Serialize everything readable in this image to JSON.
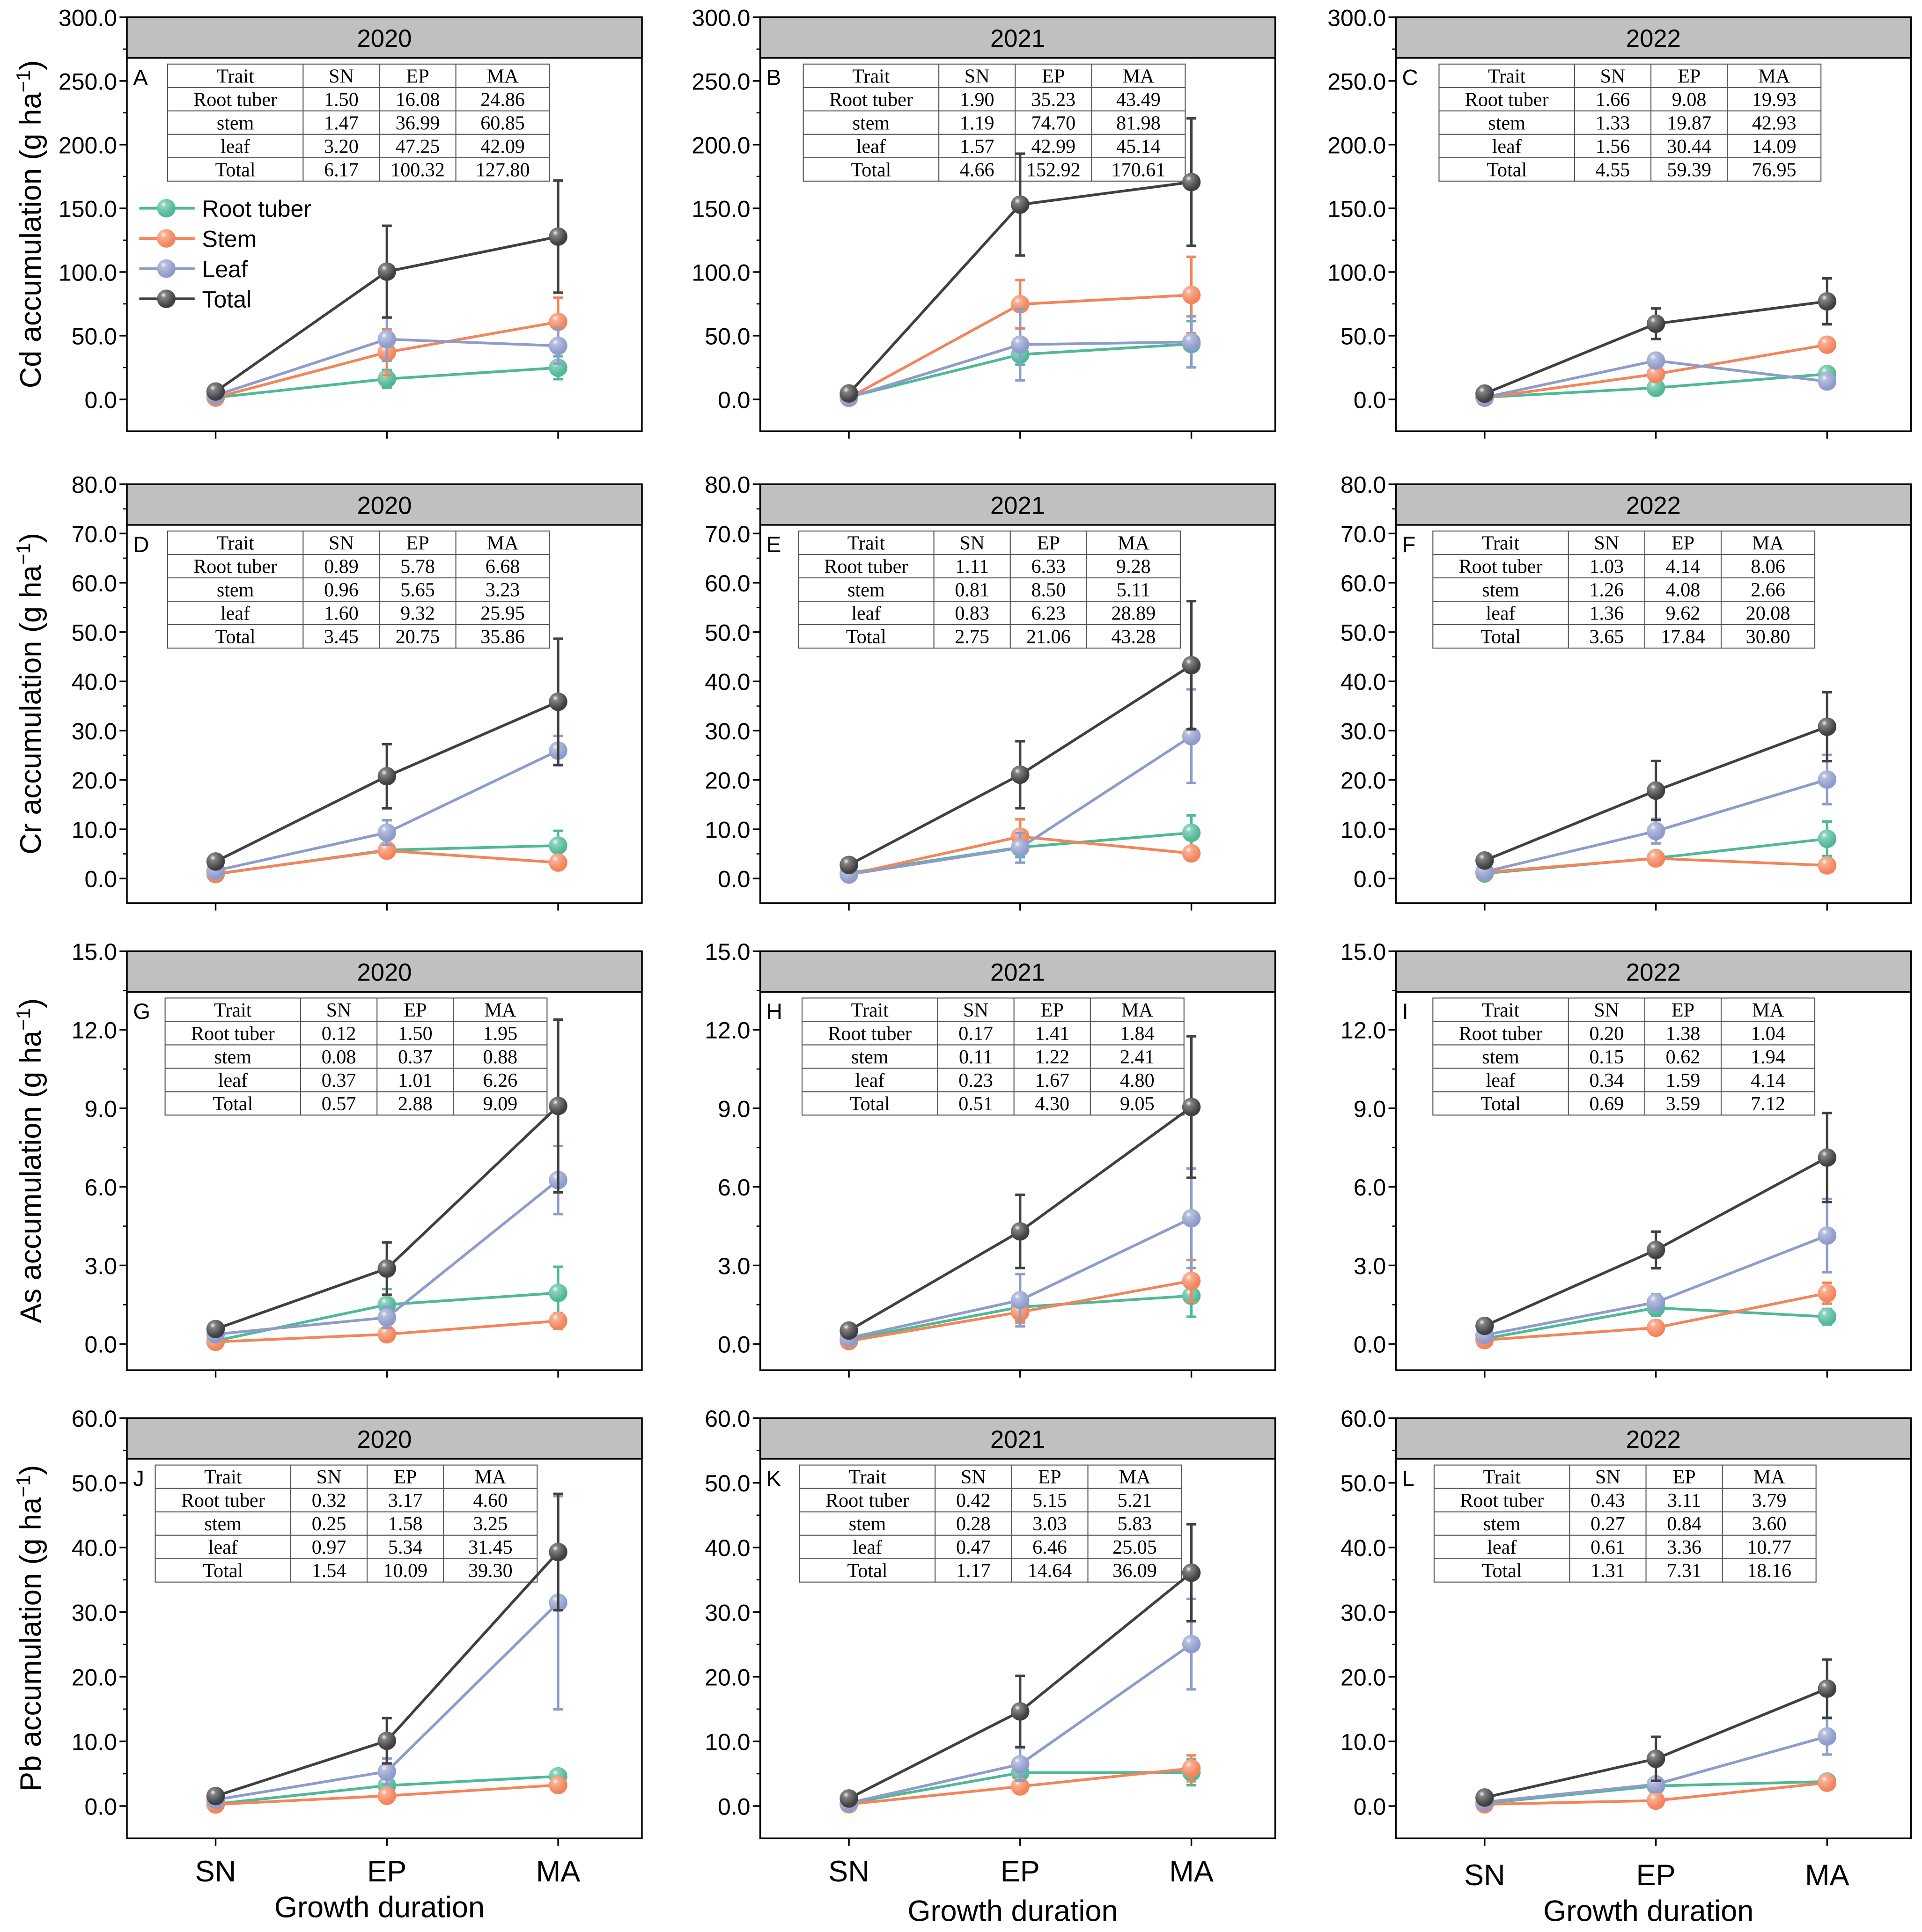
{
  "colors": {
    "root_tuber": "#4fb997",
    "stem": "#f4845a",
    "leaf": "#8e9ccb",
    "total": "#404040",
    "header_bg": "#c0c0c0"
  },
  "x_categories": [
    "SN",
    "EP",
    "MA"
  ],
  "x_axis_title": "Growth duration",
  "legend": [
    "Root tuber",
    "Stem",
    "Leaf",
    "Total"
  ],
  "table_header": [
    "Trait",
    "SN",
    "EP",
    "MA"
  ],
  "table_rows": [
    "Root tuber",
    "stem",
    "leaf",
    "Total"
  ],
  "chart_data": [
    {
      "type": "line",
      "panel": "A",
      "title": "2020",
      "element": "Cd",
      "ylabel": "Cd accumulation (g ha",
      "ylim": [
        -25,
        300
      ],
      "yticks": [
        0,
        50,
        100,
        150,
        200,
        250,
        300
      ],
      "ytick_decimals": 1,
      "series": [
        {
          "name": "Root tuber",
          "values": [
            1.5,
            16.08,
            24.86
          ],
          "errors": [
            1,
            7,
            9
          ]
        },
        {
          "name": "Stem",
          "values": [
            1.47,
            36.99,
            60.85
          ],
          "errors": [
            2,
            18,
            19
          ]
        },
        {
          "name": "Leaf",
          "values": [
            3.2,
            47.25,
            42.09
          ],
          "errors": [
            2,
            17,
            14
          ]
        },
        {
          "name": "Total",
          "values": [
            6.17,
            100.32,
            127.8
          ],
          "errors": [
            4,
            36,
            44
          ]
        }
      ],
      "table": [
        [
          "1.50",
          "16.08",
          "24.86"
        ],
        [
          "1.47",
          "36.99",
          "60.85"
        ],
        [
          "3.20",
          "47.25",
          "42.09"
        ],
        [
          "6.17",
          "100.32",
          "127.80"
        ]
      ]
    },
    {
      "type": "line",
      "panel": "B",
      "title": "2021",
      "element": "Cd",
      "ylim": [
        -25,
        300
      ],
      "yticks": [
        0,
        50,
        100,
        150,
        200,
        250,
        300
      ],
      "ytick_decimals": 1,
      "series": [
        {
          "name": "Root tuber",
          "values": [
            1.9,
            35.23,
            43.49
          ],
          "errors": [
            1,
            8,
            18
          ]
        },
        {
          "name": "Stem",
          "values": [
            1.19,
            74.7,
            81.98
          ],
          "errors": [
            1,
            19,
            30
          ]
        },
        {
          "name": "Leaf",
          "values": [
            1.57,
            42.99,
            45.14
          ],
          "errors": [
            1,
            28,
            20
          ]
        },
        {
          "name": "Total",
          "values": [
            4.66,
            152.92,
            170.61
          ],
          "errors": [
            3,
            40,
            50
          ]
        }
      ],
      "table": [
        [
          "1.90",
          "35.23",
          "43.49"
        ],
        [
          "1.19",
          "74.70",
          "81.98"
        ],
        [
          "1.57",
          "42.99",
          "45.14"
        ],
        [
          "4.66",
          "152.92",
          "170.61"
        ]
      ]
    },
    {
      "type": "line",
      "panel": "C",
      "title": "2022",
      "element": "Cd",
      "ylim": [
        -25,
        300
      ],
      "yticks": [
        0,
        50,
        100,
        150,
        200,
        250,
        300
      ],
      "ytick_decimals": 1,
      "series": [
        {
          "name": "Root tuber",
          "values": [
            1.66,
            9.08,
            19.93
          ],
          "errors": [
            1,
            3,
            5
          ]
        },
        {
          "name": "Stem",
          "values": [
            1.33,
            19.87,
            42.93
          ],
          "errors": [
            1,
            5,
            5
          ]
        },
        {
          "name": "Leaf",
          "values": [
            1.56,
            30.44,
            14.09
          ],
          "errors": [
            1,
            4,
            3
          ]
        },
        {
          "name": "Total",
          "values": [
            4.55,
            59.39,
            76.95
          ],
          "errors": [
            2,
            12,
            18
          ]
        }
      ],
      "table": [
        [
          "1.66",
          "9.08",
          "19.93"
        ],
        [
          "1.33",
          "19.87",
          "42.93"
        ],
        [
          "1.56",
          "30.44",
          "14.09"
        ],
        [
          "4.55",
          "59.39",
          "76.95"
        ]
      ]
    },
    {
      "type": "line",
      "panel": "D",
      "title": "2020",
      "element": "Cr",
      "ylabel": "Cr accumulation (g ha",
      "ylim": [
        -5,
        80
      ],
      "yticks": [
        0,
        10,
        20,
        30,
        40,
        50,
        60,
        70,
        80
      ],
      "ytick_decimals": 1,
      "series": [
        {
          "name": "Root tuber",
          "values": [
            0.89,
            5.78,
            6.68
          ],
          "errors": [
            0.3,
            1,
            3
          ]
        },
        {
          "name": "Stem",
          "values": [
            0.96,
            5.65,
            3.23
          ],
          "errors": [
            0.3,
            1.5,
            1
          ]
        },
        {
          "name": "Leaf",
          "values": [
            1.6,
            9.32,
            25.95
          ],
          "errors": [
            0.5,
            2.5,
            3
          ]
        },
        {
          "name": "Total",
          "values": [
            3.45,
            20.75,
            35.86
          ],
          "errors": [
            1,
            6.5,
            12.8
          ]
        }
      ],
      "table": [
        [
          "0.89",
          "5.78",
          "6.68"
        ],
        [
          "0.96",
          "5.65",
          "3.23"
        ],
        [
          "1.60",
          "9.32",
          "25.95"
        ],
        [
          "3.45",
          "20.75",
          "35.86"
        ]
      ]
    },
    {
      "type": "line",
      "panel": "E",
      "title": "2021",
      "element": "Cr",
      "ylim": [
        -5,
        80
      ],
      "yticks": [
        0,
        10,
        20,
        30,
        40,
        50,
        60,
        70,
        80
      ],
      "ytick_decimals": 1,
      "series": [
        {
          "name": "Root tuber",
          "values": [
            1.11,
            6.33,
            9.28
          ],
          "errors": [
            0.3,
            2,
            3.5
          ]
        },
        {
          "name": "Stem",
          "values": [
            0.81,
            8.5,
            5.11
          ],
          "errors": [
            0.3,
            3.5,
            1
          ]
        },
        {
          "name": "Leaf",
          "values": [
            0.83,
            6.23,
            28.89
          ],
          "errors": [
            0.3,
            3,
            9.5
          ]
        },
        {
          "name": "Total",
          "values": [
            2.75,
            21.06,
            43.28
          ],
          "errors": [
            1,
            6.8,
            13
          ]
        }
      ],
      "table": [
        [
          "1.11",
          "6.33",
          "9.28"
        ],
        [
          "0.81",
          "8.50",
          "5.11"
        ],
        [
          "0.83",
          "6.23",
          "28.89"
        ],
        [
          "2.75",
          "21.06",
          "43.28"
        ]
      ]
    },
    {
      "type": "line",
      "panel": "F",
      "title": "2022",
      "element": "Cr",
      "ylim": [
        -5,
        80
      ],
      "yticks": [
        0,
        10,
        20,
        30,
        40,
        50,
        60,
        70,
        80
      ],
      "ytick_decimals": 1,
      "series": [
        {
          "name": "Root tuber",
          "values": [
            1.03,
            4.14,
            8.06
          ],
          "errors": [
            0.3,
            1,
            3.5
          ]
        },
        {
          "name": "Stem",
          "values": [
            1.26,
            4.08,
            2.66
          ],
          "errors": [
            0.3,
            1,
            1
          ]
        },
        {
          "name": "Leaf",
          "values": [
            1.36,
            9.62,
            20.08
          ],
          "errors": [
            0.4,
            2.5,
            5
          ]
        },
        {
          "name": "Total",
          "values": [
            3.65,
            17.84,
            30.8
          ],
          "errors": [
            1,
            6,
            7
          ]
        }
      ],
      "table": [
        [
          "1.03",
          "4.14",
          "8.06"
        ],
        [
          "1.26",
          "4.08",
          "2.66"
        ],
        [
          "1.36",
          "9.62",
          "20.08"
        ],
        [
          "3.65",
          "17.84",
          "30.80"
        ]
      ]
    },
    {
      "type": "line",
      "panel": "G",
      "title": "2020",
      "element": "As",
      "ylabel": "As accumulation (g ha",
      "ylim": [
        -1,
        15
      ],
      "yticks": [
        0,
        3,
        6,
        9,
        12,
        15
      ],
      "ytick_decimals": 1,
      "series": [
        {
          "name": "Root tuber",
          "values": [
            0.12,
            1.5,
            1.95
          ],
          "errors": [
            0.05,
            0.6,
            1
          ]
        },
        {
          "name": "Stem",
          "values": [
            0.08,
            0.37,
            0.88
          ],
          "errors": [
            0.03,
            0.2,
            0.3
          ]
        },
        {
          "name": "Leaf",
          "values": [
            0.37,
            1.01,
            6.26
          ],
          "errors": [
            0.1,
            0.4,
            1.3
          ]
        },
        {
          "name": "Total",
          "values": [
            0.57,
            2.88,
            9.09
          ],
          "errors": [
            0.2,
            1,
            3.3
          ]
        }
      ],
      "table": [
        [
          "0.12",
          "1.50",
          "1.95"
        ],
        [
          "0.08",
          "0.37",
          "0.88"
        ],
        [
          "0.37",
          "1.01",
          "6.26"
        ],
        [
          "0.57",
          "2.88",
          "9.09"
        ]
      ]
    },
    {
      "type": "line",
      "panel": "H",
      "title": "2021",
      "element": "As",
      "ylim": [
        -1,
        15
      ],
      "yticks": [
        0,
        3,
        6,
        9,
        12,
        15
      ],
      "ytick_decimals": 1,
      "series": [
        {
          "name": "Root tuber",
          "values": [
            0.17,
            1.41,
            1.84
          ],
          "errors": [
            0.05,
            0.5,
            0.8
          ]
        },
        {
          "name": "Stem",
          "values": [
            0.11,
            1.22,
            2.41
          ],
          "errors": [
            0.04,
            0.4,
            0.8
          ]
        },
        {
          "name": "Leaf",
          "values": [
            0.23,
            1.67,
            4.8
          ],
          "errors": [
            0.08,
            1,
            1.9
          ]
        },
        {
          "name": "Total",
          "values": [
            0.51,
            4.3,
            9.05
          ],
          "errors": [
            0.2,
            1.4,
            2.7
          ]
        }
      ],
      "table": [
        [
          "0.17",
          "1.41",
          "1.84"
        ],
        [
          "0.11",
          "1.22",
          "2.41"
        ],
        [
          "0.23",
          "1.67",
          "4.80"
        ],
        [
          "0.51",
          "4.30",
          "9.05"
        ]
      ]
    },
    {
      "type": "line",
      "panel": "I",
      "title": "2022",
      "element": "As",
      "ylim": [
        -1,
        15
      ],
      "yticks": [
        0,
        3,
        6,
        9,
        12,
        15
      ],
      "ytick_decimals": 1,
      "series": [
        {
          "name": "Root tuber",
          "values": [
            0.2,
            1.38,
            1.04
          ],
          "errors": [
            0.05,
            0.3,
            0.3
          ]
        },
        {
          "name": "Stem",
          "values": [
            0.15,
            0.62,
            1.94
          ],
          "errors": [
            0.05,
            0.2,
            0.4
          ]
        },
        {
          "name": "Leaf",
          "values": [
            0.34,
            1.59,
            4.14
          ],
          "errors": [
            0.1,
            0.3,
            1.4
          ]
        },
        {
          "name": "Total",
          "values": [
            0.69,
            3.59,
            7.12
          ],
          "errors": [
            0.2,
            0.7,
            1.7
          ]
        }
      ],
      "table": [
        [
          "0.20",
          "1.38",
          "1.04"
        ],
        [
          "0.15",
          "0.62",
          "1.94"
        ],
        [
          "0.34",
          "1.59",
          "4.14"
        ],
        [
          "0.69",
          "3.59",
          "7.12"
        ]
      ]
    },
    {
      "type": "line",
      "panel": "J",
      "title": "2020",
      "element": "Pb",
      "ylabel": "Pb accumulation (g ha",
      "ylim": [
        -5,
        60
      ],
      "yticks": [
        0,
        10,
        20,
        30,
        40,
        50,
        60
      ],
      "ytick_decimals": 1,
      "series": [
        {
          "name": "Root tuber",
          "values": [
            0.32,
            3.17,
            4.6
          ],
          "errors": [
            0.1,
            0.5,
            1
          ]
        },
        {
          "name": "Stem",
          "values": [
            0.25,
            1.58,
            3.25
          ],
          "errors": [
            0.1,
            0.5,
            0.8
          ]
        },
        {
          "name": "Leaf",
          "values": [
            0.97,
            5.34,
            31.45
          ],
          "errors": [
            0.3,
            2,
            16.5
          ]
        },
        {
          "name": "Total",
          "values": [
            1.54,
            10.09,
            39.3
          ],
          "errors": [
            0.5,
            3.5,
            9
          ]
        }
      ],
      "table": [
        [
          "0.32",
          "3.17",
          "4.60"
        ],
        [
          "0.25",
          "1.58",
          "3.25"
        ],
        [
          "0.97",
          "5.34",
          "31.45"
        ],
        [
          "1.54",
          "10.09",
          "39.30"
        ]
      ]
    },
    {
      "type": "line",
      "panel": "K",
      "title": "2021",
      "element": "Pb",
      "ylim": [
        -5,
        60
      ],
      "yticks": [
        0,
        10,
        20,
        30,
        40,
        50,
        60
      ],
      "ytick_decimals": 1,
      "series": [
        {
          "name": "Root tuber",
          "values": [
            0.42,
            5.15,
            5.21
          ],
          "errors": [
            0.1,
            1.5,
            2
          ]
        },
        {
          "name": "Stem",
          "values": [
            0.28,
            3.03,
            5.83
          ],
          "errors": [
            0.1,
            0.8,
            2
          ]
        },
        {
          "name": "Leaf",
          "values": [
            0.47,
            6.46,
            25.05
          ],
          "errors": [
            0.1,
            2.5,
            7
          ]
        },
        {
          "name": "Total",
          "values": [
            1.17,
            14.64,
            36.09
          ],
          "errors": [
            0.4,
            5.5,
            7.5
          ]
        }
      ],
      "table": [
        [
          "0.42",
          "5.15",
          "5.21"
        ],
        [
          "0.28",
          "3.03",
          "5.83"
        ],
        [
          "0.47",
          "6.46",
          "25.05"
        ],
        [
          "1.17",
          "14.64",
          "36.09"
        ]
      ]
    },
    {
      "type": "line",
      "panel": "L",
      "title": "2022",
      "element": "Pb",
      "ylim": [
        -5,
        60
      ],
      "yticks": [
        0,
        10,
        20,
        30,
        40,
        50,
        60
      ],
      "ytick_decimals": 1,
      "series": [
        {
          "name": "Root tuber",
          "values": [
            0.43,
            3.11,
            3.79
          ],
          "errors": [
            0.1,
            0.5,
            0.5
          ]
        },
        {
          "name": "Stem",
          "values": [
            0.27,
            0.84,
            3.6
          ],
          "errors": [
            0.1,
            0.5,
            1
          ]
        },
        {
          "name": "Leaf",
          "values": [
            0.61,
            3.36,
            10.77
          ],
          "errors": [
            0.2,
            1,
            2.8
          ]
        },
        {
          "name": "Total",
          "values": [
            1.31,
            7.31,
            18.16
          ],
          "errors": [
            0.4,
            3.4,
            4.5
          ]
        }
      ],
      "table": [
        [
          "0.43",
          "3.11",
          "3.79"
        ],
        [
          "0.27",
          "0.84",
          "3.60"
        ],
        [
          "0.61",
          "3.36",
          "10.77"
        ],
        [
          "1.31",
          "7.31",
          "18.16"
        ]
      ]
    }
  ]
}
